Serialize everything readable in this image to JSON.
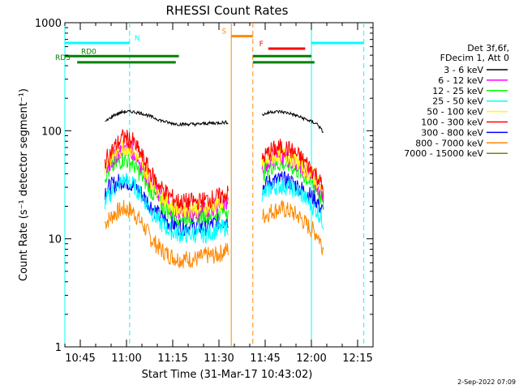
{
  "chart_data": {
    "type": "line",
    "title": "RHESSI Count Rates",
    "xlabel": "Start Time (31-Mar-17 10:43:02)",
    "ylabel": "Count Rate (s⁻¹ detector segment⁻¹)",
    "yscale": "log",
    "ylim": [
      1,
      1000
    ],
    "xlim": [
      "10:40",
      "12:20"
    ],
    "x_ticks": [
      "10:45",
      "11:00",
      "11:15",
      "11:30",
      "11:45",
      "12:00",
      "12:15"
    ],
    "y_ticks": [
      "1",
      "10",
      "100",
      "1000"
    ],
    "legend_header": [
      "Det 3f,6f,",
      "FDecim 1, Att 0"
    ],
    "legend_position": "right",
    "series": [
      {
        "name": "3 - 6 keV",
        "color": "#000000",
        "points_a": [
          [
            "10:53",
            120
          ],
          [
            "10:56",
            140
          ],
          [
            "10:59",
            150
          ],
          [
            "11:02",
            150
          ],
          [
            "11:05",
            145
          ],
          [
            "11:08",
            135
          ],
          [
            "11:11",
            125
          ],
          [
            "11:14",
            118
          ],
          [
            "11:17",
            115
          ],
          [
            "11:20",
            115
          ],
          [
            "11:23",
            115
          ],
          [
            "11:26",
            117
          ],
          [
            "11:29",
            118
          ],
          [
            "11:33",
            120
          ]
        ],
        "points_b": [
          [
            "11:44",
            140
          ],
          [
            "11:47",
            150
          ],
          [
            "11:50",
            150
          ],
          [
            "11:53",
            145
          ],
          [
            "11:56",
            135
          ],
          [
            "11:59",
            125
          ],
          [
            "12:02",
            115
          ],
          [
            "12:04",
            95
          ]
        ]
      },
      {
        "name": "6 - 12 keV",
        "color": "#ff00ff",
        "points_a": [
          [
            "10:53",
            42
          ],
          [
            "10:56",
            57
          ],
          [
            "10:59",
            70
          ],
          [
            "11:02",
            65
          ],
          [
            "11:05",
            48
          ],
          [
            "11:08",
            33
          ],
          [
            "11:11",
            25
          ],
          [
            "11:14",
            20
          ],
          [
            "11:17",
            18
          ],
          [
            "11:20",
            18
          ],
          [
            "11:23",
            18
          ],
          [
            "11:26",
            19
          ],
          [
            "11:29",
            20
          ],
          [
            "11:33",
            22
          ]
        ],
        "points_b": [
          [
            "11:44",
            45
          ],
          [
            "11:47",
            55
          ],
          [
            "11:50",
            57
          ],
          [
            "11:53",
            55
          ],
          [
            "11:56",
            48
          ],
          [
            "11:59",
            40
          ],
          [
            "12:02",
            32
          ],
          [
            "12:04",
            24
          ]
        ]
      },
      {
        "name": "12 - 25 keV",
        "color": "#00ff00",
        "points_a": [
          [
            "10:53",
            38
          ],
          [
            "10:56",
            48
          ],
          [
            "10:59",
            55
          ],
          [
            "11:02",
            50
          ],
          [
            "11:05",
            38
          ],
          [
            "11:08",
            28
          ],
          [
            "11:11",
            21
          ],
          [
            "11:14",
            18
          ],
          [
            "11:17",
            16
          ],
          [
            "11:20",
            16
          ],
          [
            "11:23",
            16
          ],
          [
            "11:26",
            17
          ],
          [
            "11:29",
            17
          ],
          [
            "11:33",
            19
          ]
        ],
        "points_b": [
          [
            "11:44",
            40
          ],
          [
            "11:47",
            47
          ],
          [
            "11:50",
            50
          ],
          [
            "11:53",
            48
          ],
          [
            "11:56",
            42
          ],
          [
            "11:59",
            35
          ],
          [
            "12:02",
            28
          ],
          [
            "12:04",
            21
          ]
        ]
      },
      {
        "name": "25 - 50 keV",
        "color": "#00ffff",
        "points_a": [
          [
            "10:53",
            22
          ],
          [
            "10:56",
            29
          ],
          [
            "10:59",
            35
          ],
          [
            "11:02",
            32
          ],
          [
            "11:05",
            25
          ],
          [
            "11:08",
            18
          ],
          [
            "11:11",
            14
          ],
          [
            "11:14",
            12
          ],
          [
            "11:17",
            11
          ],
          [
            "11:20",
            11
          ],
          [
            "11:23",
            11
          ],
          [
            "11:26",
            11
          ],
          [
            "11:29",
            12
          ],
          [
            "11:33",
            13
          ]
        ],
        "points_b": [
          [
            "11:44",
            25
          ],
          [
            "11:47",
            30
          ],
          [
            "11:50",
            31
          ],
          [
            "11:53",
            30
          ],
          [
            "11:56",
            27
          ],
          [
            "11:59",
            22
          ],
          [
            "12:02",
            18
          ],
          [
            "12:04",
            14
          ]
        ]
      },
      {
        "name": "50 - 100 keV",
        "color": "#ffff00",
        "points_a": [
          [
            "10:53",
            47
          ],
          [
            "10:56",
            62
          ],
          [
            "10:59",
            72
          ],
          [
            "11:02",
            66
          ],
          [
            "11:05",
            49
          ],
          [
            "11:08",
            34
          ],
          [
            "11:11",
            26
          ],
          [
            "11:14",
            21
          ],
          [
            "11:17",
            19
          ],
          [
            "11:20",
            19
          ],
          [
            "11:23",
            19
          ],
          [
            "11:26",
            20
          ],
          [
            "11:29",
            21
          ],
          [
            "11:33",
            23
          ]
        ],
        "points_b": [
          [
            "11:44",
            47
          ],
          [
            "11:47",
            58
          ],
          [
            "11:50",
            60
          ],
          [
            "11:53",
            58
          ],
          [
            "11:56",
            50
          ],
          [
            "11:59",
            42
          ],
          [
            "12:02",
            34
          ],
          [
            "12:04",
            25
          ]
        ]
      },
      {
        "name": "100 - 300 keV",
        "color": "#ff0000",
        "points_a": [
          [
            "10:53",
            52
          ],
          [
            "10:56",
            70
          ],
          [
            "10:59",
            88
          ],
          [
            "11:02",
            80
          ],
          [
            "11:05",
            58
          ],
          [
            "11:08",
            40
          ],
          [
            "11:11",
            30
          ],
          [
            "11:14",
            25
          ],
          [
            "11:17",
            22
          ],
          [
            "11:20",
            22
          ],
          [
            "11:23",
            22
          ],
          [
            "11:26",
            23
          ],
          [
            "11:29",
            24
          ],
          [
            "11:33",
            26
          ]
        ],
        "points_b": [
          [
            "11:44",
            55
          ],
          [
            "11:47",
            66
          ],
          [
            "11:50",
            70
          ],
          [
            "11:53",
            67
          ],
          [
            "11:56",
            58
          ],
          [
            "11:59",
            48
          ],
          [
            "12:02",
            38
          ],
          [
            "12:04",
            28
          ]
        ]
      },
      {
        "name": "300 - 800 keV",
        "color": "#0000ff",
        "points_a": [
          [
            "10:53",
            28
          ],
          [
            "10:56",
            32
          ],
          [
            "10:59",
            35
          ],
          [
            "11:02",
            32
          ],
          [
            "11:05",
            26
          ],
          [
            "11:08",
            20
          ],
          [
            "11:11",
            16
          ],
          [
            "11:14",
            14
          ],
          [
            "11:17",
            13
          ],
          [
            "11:20",
            13
          ],
          [
            "11:23",
            13
          ],
          [
            "11:26",
            13
          ],
          [
            "11:29",
            14
          ],
          [
            "11:33",
            15
          ]
        ],
        "points_b": [
          [
            "11:44",
            30
          ],
          [
            "11:47",
            34
          ],
          [
            "11:50",
            35
          ],
          [
            "11:53",
            34
          ],
          [
            "11:56",
            30
          ],
          [
            "11:59",
            26
          ],
          [
            "12:02",
            22
          ],
          [
            "12:04",
            17
          ]
        ]
      },
      {
        "name": "800 - 7000 keV",
        "color": "#ff8800",
        "points_a": [
          [
            "10:53",
            14
          ],
          [
            "10:56",
            17
          ],
          [
            "10:59",
            19
          ],
          [
            "11:02",
            18
          ],
          [
            "11:05",
            14
          ],
          [
            "11:08",
            10
          ],
          [
            "11:11",
            8
          ],
          [
            "11:14",
            7
          ],
          [
            "11:17",
            6.5
          ],
          [
            "11:20",
            6.5
          ],
          [
            "11:23",
            6.5
          ],
          [
            "11:26",
            7
          ],
          [
            "11:29",
            7
          ],
          [
            "11:33",
            8
          ]
        ],
        "points_b": [
          [
            "11:44",
            16
          ],
          [
            "11:47",
            18
          ],
          [
            "11:50",
            19
          ],
          [
            "11:53",
            18
          ],
          [
            "11:56",
            16
          ],
          [
            "11:59",
            13
          ],
          [
            "12:02",
            11
          ],
          [
            "12:04",
            8
          ]
        ]
      },
      {
        "name": "7000 - 15000 keV",
        "color": "#808000",
        "points_a": [],
        "points_b": []
      }
    ],
    "vertical_markers": [
      {
        "x": "10:40",
        "color": "#00ffff",
        "style": "solid"
      },
      {
        "x": "11:01",
        "color": "#00ffff",
        "style": "dashed"
      },
      {
        "x": "11:34",
        "color": "#ff8800",
        "style": "solid"
      },
      {
        "x": "11:41",
        "color": "#ff8800",
        "style": "dashed"
      },
      {
        "x": "12:00",
        "color": "#00ffff",
        "style": "solid"
      },
      {
        "x": "12:17",
        "color": "#00ffff",
        "style": "dashed"
      }
    ],
    "flag_bars": [
      {
        "label": "N",
        "color": "#00ffff",
        "y": 650,
        "segments": [
          [
            "10:40",
            "11:01"
          ],
          [
            "12:00",
            "12:17"
          ]
        ]
      },
      {
        "label": "S",
        "color": "#ff8800",
        "y": 750,
        "segments": [
          [
            "11:34",
            "11:41"
          ]
        ]
      },
      {
        "label": "F",
        "color": "#ff0000",
        "y": 575,
        "segments": [
          [
            "11:46",
            "11:58"
          ]
        ]
      },
      {
        "label": "RD0",
        "color": "#008000",
        "y": 490,
        "segments": [
          [
            "10:40",
            "11:17"
          ],
          [
            "11:41",
            "12:00"
          ]
        ]
      },
      {
        "label": "RD3",
        "color": "#008000",
        "y": 430,
        "segments": [
          [
            "10:44",
            "11:16"
          ],
          [
            "11:41",
            "12:01"
          ]
        ]
      }
    ]
  },
  "footer_timestamp": "2-Sep-2022 07:09"
}
